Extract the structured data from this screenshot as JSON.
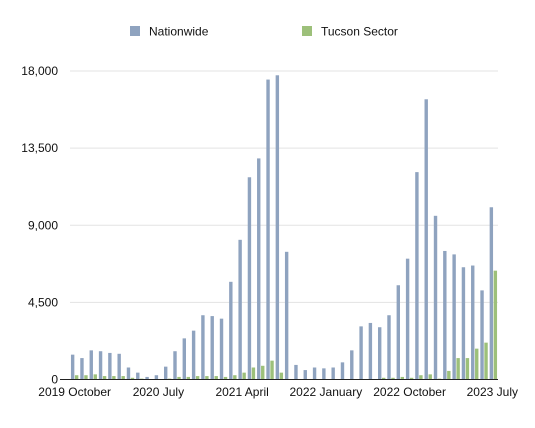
{
  "chart_data": {
    "type": "bar",
    "categories": [
      "2019-10",
      "2019-11",
      "2019-12",
      "2020-01",
      "2020-02",
      "2020-03",
      "2020-04",
      "2020-05",
      "2020-06",
      "2020-07",
      "2020-08",
      "2020-09",
      "2020-10",
      "2020-11",
      "2020-12",
      "2021-01",
      "2021-02",
      "2021-03",
      "2021-04",
      "2021-05",
      "2021-06",
      "2021-07",
      "2021-08",
      "2021-09",
      "2021-10",
      "2021-11",
      "2021-12",
      "2022-01",
      "2022-02",
      "2022-03",
      "2022-04",
      "2022-05",
      "2022-06",
      "2022-07",
      "2022-08",
      "2022-09",
      "2022-10",
      "2022-11",
      "2022-12",
      "2023-01",
      "2023-02",
      "2023-03",
      "2023-04",
      "2023-05",
      "2023-06",
      "2023-07"
    ],
    "series": [
      {
        "name": "Nationwide",
        "color": "#8fa3bf",
        "values": [
          1450,
          1250,
          1700,
          1650,
          1550,
          1500,
          700,
          400,
          150,
          250,
          750,
          1650,
          2400,
          2850,
          3750,
          3700,
          3550,
          5700,
          8150,
          11800,
          12900,
          17500,
          17750,
          7450,
          850,
          550,
          700,
          650,
          700,
          1000,
          1700,
          3100,
          3300,
          3050,
          3750,
          5500,
          7050,
          12100,
          16350,
          9550,
          7500,
          7300,
          6550,
          6650,
          5200,
          10050
        ]
      },
      {
        "name": "Tucson Sector",
        "color": "#9dc07a",
        "values": [
          250,
          250,
          300,
          200,
          200,
          200,
          100,
          50,
          0,
          0,
          50,
          150,
          150,
          200,
          200,
          200,
          150,
          250,
          400,
          700,
          800,
          1100,
          400,
          0,
          0,
          0,
          0,
          0,
          0,
          0,
          0,
          0,
          0,
          100,
          100,
          150,
          100,
          250,
          300,
          50,
          500,
          1250,
          1250,
          1800,
          2150,
          6350
        ]
      }
    ],
    "x_tick_labels": [
      {
        "label": "2019 October",
        "index": 0
      },
      {
        "label": "2020 July",
        "index": 9
      },
      {
        "label": "2021 April",
        "index": 18
      },
      {
        "label": "2022 January",
        "index": 27
      },
      {
        "label": "2022 October",
        "index": 36
      },
      {
        "label": "2023 July",
        "index": 45
      }
    ],
    "y_ticks": [
      0,
      4500,
      9000,
      13500,
      18000
    ],
    "y_tick_labels": [
      "0",
      "4,500",
      "9,000",
      "13,500",
      "18,000"
    ],
    "ylim": [
      0,
      18000
    ],
    "grid": true,
    "legend_position": "top-center"
  }
}
